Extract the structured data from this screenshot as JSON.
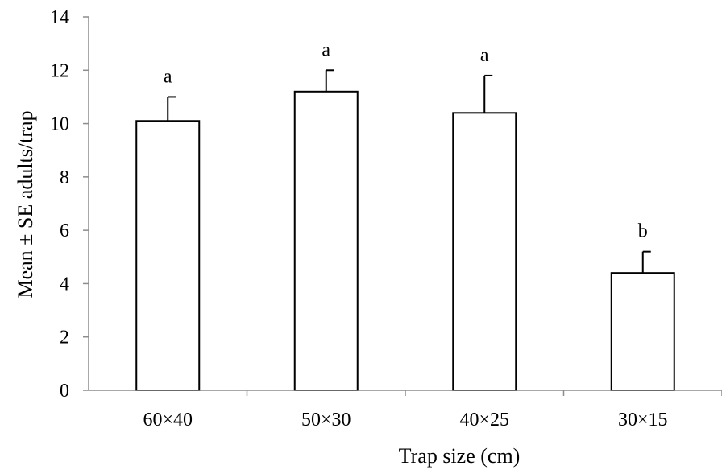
{
  "chart_data": {
    "type": "bar",
    "categories": [
      "60×40",
      "50×30",
      "40×25",
      "30×15"
    ],
    "values": [
      10.1,
      11.2,
      10.4,
      4.4
    ],
    "errors": [
      0.9,
      0.8,
      1.4,
      0.8
    ],
    "significance": [
      "a",
      "a",
      "a",
      "b"
    ],
    "xlabel": "Trap size (cm)",
    "ylabel": "Mean ± SE adults/trap",
    "ylim": [
      0,
      14
    ],
    "yticks": [
      0,
      2,
      4,
      6,
      8,
      10,
      12,
      14
    ],
    "grid": false,
    "bar_fill": "#ffffff",
    "bar_stroke": "#000000",
    "axis_color": "#8c8c8c"
  }
}
